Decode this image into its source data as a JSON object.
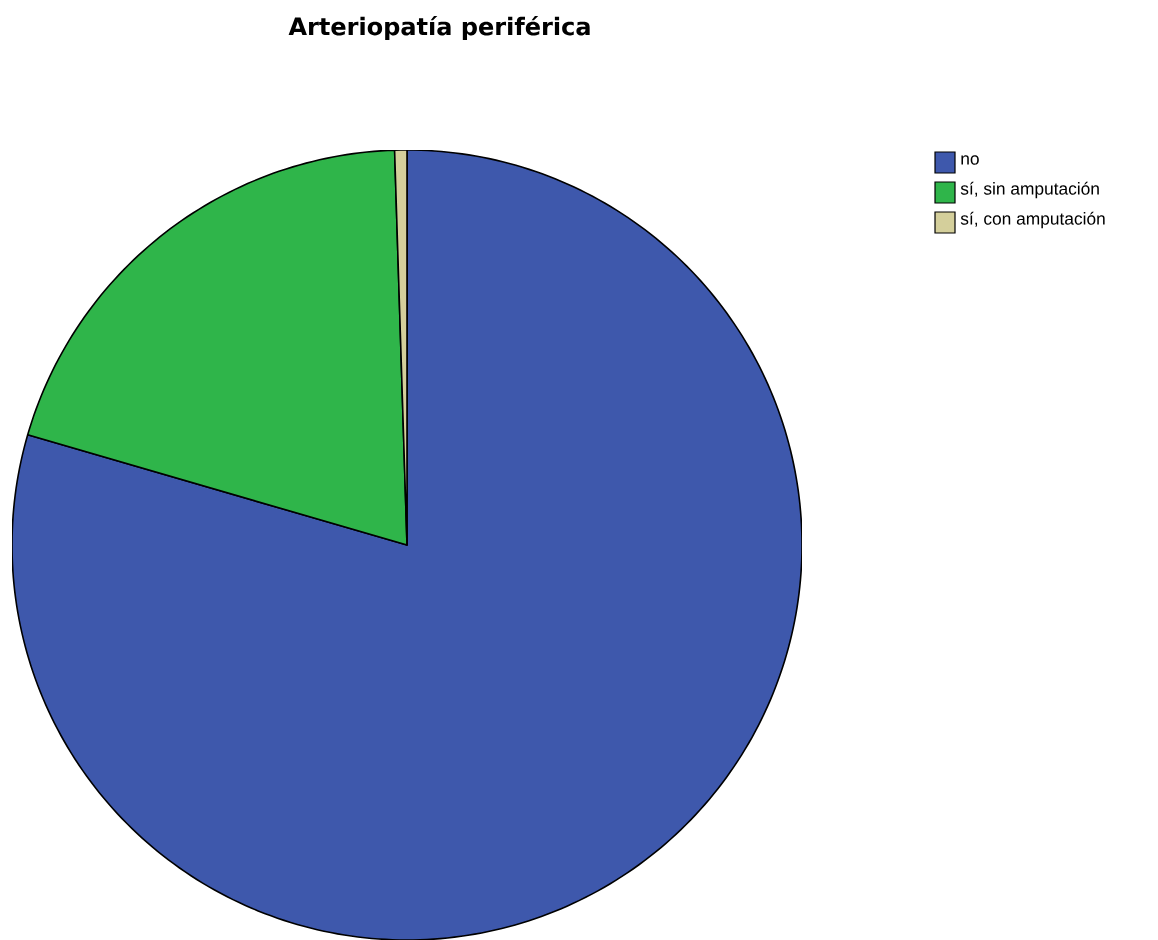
{
  "chart_data": {
    "type": "pie",
    "title": "Arteriopatía periférica",
    "categories": [
      "no",
      "sí, sin amputación",
      "sí, con amputación"
    ],
    "values": [
      79.5,
      20.0,
      0.5
    ],
    "colors": [
      "#3e58ac",
      "#2fb54a",
      "#d4cf9b"
    ],
    "legend": "top right"
  }
}
